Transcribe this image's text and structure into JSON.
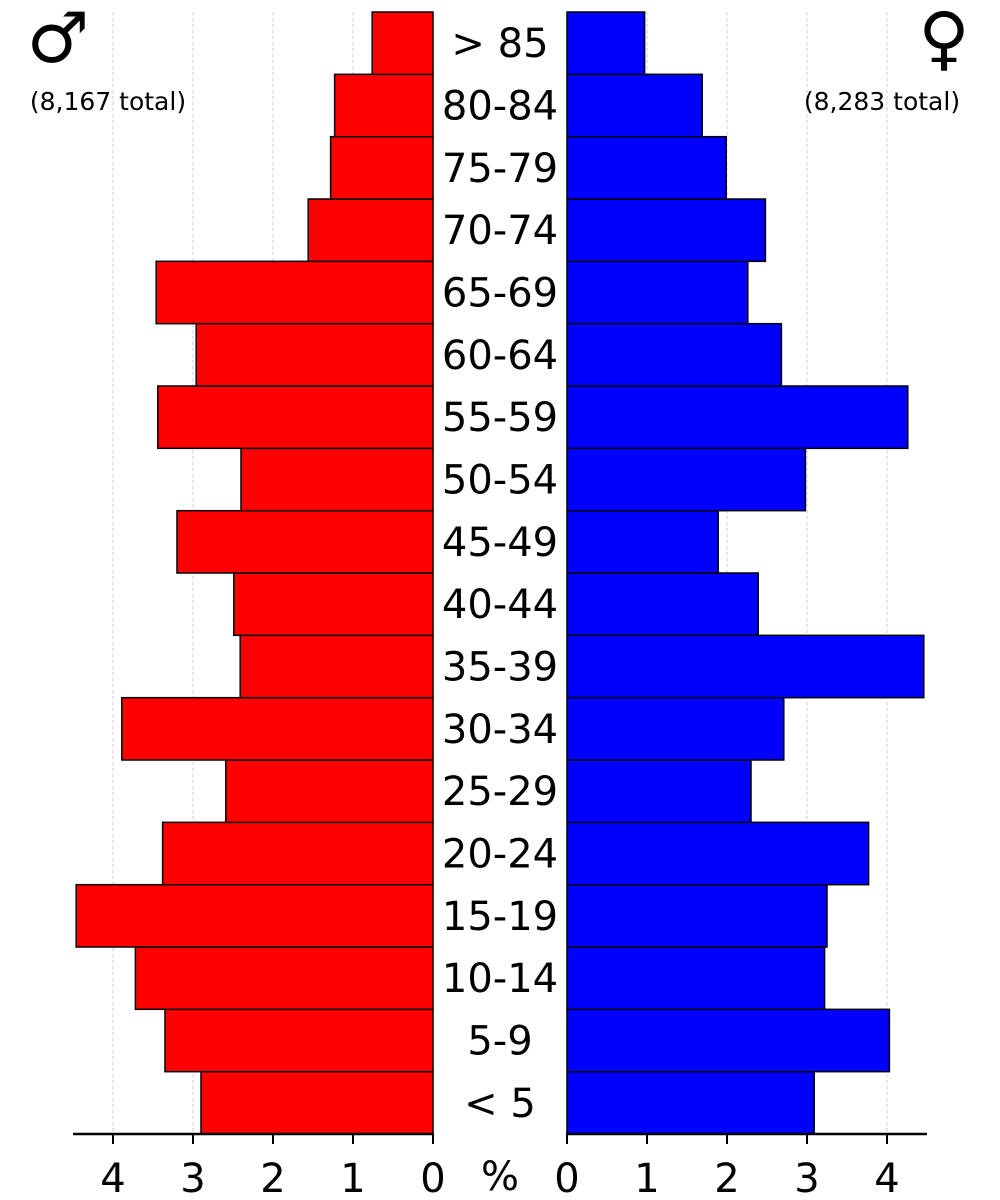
{
  "chart_data": {
    "type": "bar",
    "orientation": "horizontal",
    "categories": [
      "< 5",
      "5-9",
      "10-14",
      "15-19",
      "20-24",
      "25-29",
      "30-34",
      "35-39",
      "40-44",
      "45-49",
      "50-54",
      "55-59",
      "60-64",
      "65-69",
      "70-74",
      "75-79",
      "80-84",
      "> 85"
    ],
    "series": [
      {
        "side": "left",
        "symbol": "♂",
        "total_label": "(8,167 total)",
        "color": "#ff0000",
        "values": [
          2.9,
          3.35,
          3.72,
          4.46,
          3.38,
          2.59,
          3.89,
          2.41,
          2.49,
          3.2,
          2.4,
          3.44,
          2.96,
          3.46,
          1.56,
          1.28,
          1.23,
          0.76
        ]
      },
      {
        "side": "right",
        "symbol": "♀",
        "total_label": "(8,283 total)",
        "color": "#0000ff",
        "values": [
          3.09,
          4.03,
          3.22,
          3.25,
          3.77,
          2.3,
          2.71,
          4.46,
          2.39,
          1.89,
          2.98,
          4.26,
          2.68,
          2.26,
          2.48,
          1.99,
          1.69,
          0.97
        ]
      }
    ],
    "xlim": [
      0,
      4.5
    ],
    "xticks": [
      "0",
      "1",
      "2",
      "3",
      "4"
    ],
    "x_unit_label": "%",
    "grid": "vertical dashed",
    "bar_edge_color": "#000000"
  }
}
